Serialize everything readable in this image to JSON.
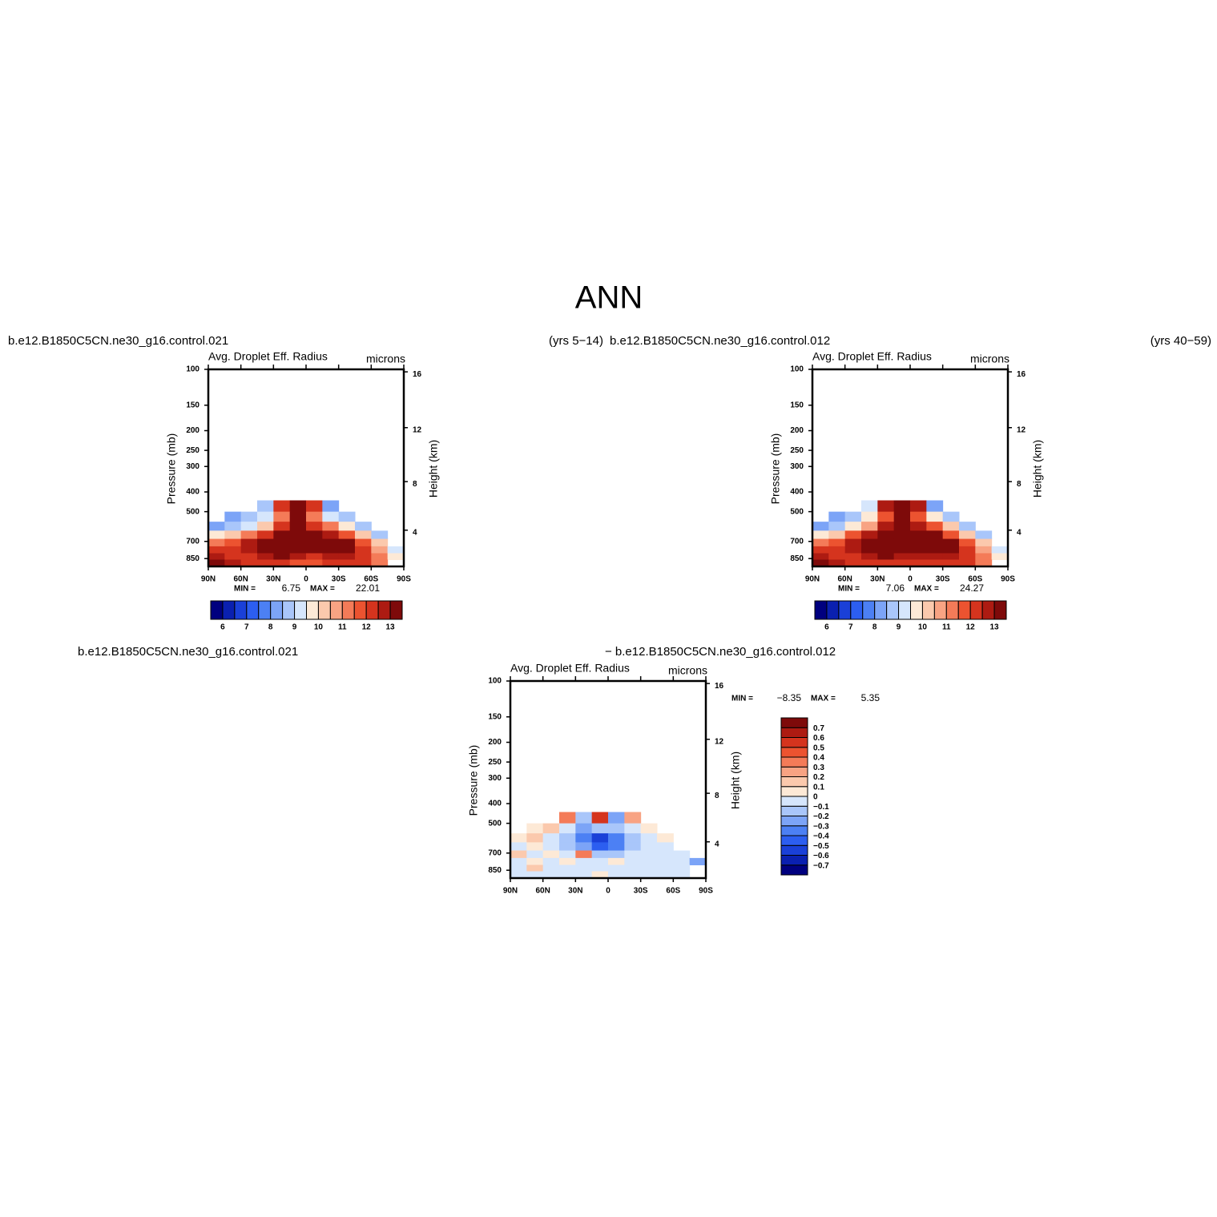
{
  "suptitle": "ANN",
  "header_row1": [
    "b.e12.B1850C5CN.ne30_g16.control.021",
    "(yrs 5−14)",
    "b.e12.B1850C5CN.ne30_g16.control.012",
    "(yrs 40−59)"
  ],
  "header_row2": [
    "b.e12.B1850C5CN.ne30_g16.control.021",
    "− b.e12.B1850C5CN.ne30_g16.control.012"
  ],
  "chart_data": [
    {
      "type": "contour",
      "title": "Avg. Droplet Eff. Radius",
      "units": "microns",
      "ylabel": "Pressure (mb)",
      "y2label": "Height (km)",
      "x": [
        90,
        75,
        60,
        45,
        30,
        15,
        0,
        -15,
        -30,
        -45,
        -60,
        -75,
        -90
      ],
      "y": [
        440,
        500,
        560,
        620,
        680,
        740,
        800,
        860,
        929
      ],
      "values": [
        [
          null,
          null,
          null,
          8.5,
          12,
          14,
          12,
          8,
          null,
          null,
          null,
          null
        ],
        [
          null,
          8,
          8.5,
          9,
          11,
          13,
          11,
          9,
          8.5,
          null,
          null,
          null
        ],
        [
          8,
          8.5,
          9,
          10,
          12,
          13.5,
          12,
          11,
          9.5,
          8.5,
          null,
          null
        ],
        [
          9.5,
          10,
          11,
          12,
          13.5,
          14,
          13.5,
          12.5,
          11.5,
          10,
          8.5,
          null
        ],
        [
          11,
          11.5,
          12.5,
          13.5,
          14,
          14,
          13.5,
          14,
          13,
          11.5,
          10,
          null
        ],
        [
          12,
          12,
          12.5,
          13.5,
          14,
          13.5,
          13,
          13.5,
          13,
          12,
          10.5,
          9
        ],
        [
          12.5,
          12,
          12,
          12.5,
          13,
          12.5,
          12,
          12.5,
          12.5,
          12,
          11,
          9.5
        ],
        [
          13,
          12.5,
          12,
          12,
          12,
          11.5,
          11.5,
          12,
          12,
          12,
          11,
          null
        ]
      ],
      "xlim": [
        90,
        -90
      ],
      "ylim": [
        929,
        100
      ],
      "log_y": true,
      "xticks": [
        {
          "value": 90,
          "label": "90N"
        },
        {
          "value": 60,
          "label": "60N"
        },
        {
          "value": 30,
          "label": "30N"
        },
        0,
        {
          "value": -30,
          "label": "30S"
        },
        {
          "value": -60,
          "label": "60S"
        },
        {
          "value": -90,
          "label": "90S"
        }
      ],
      "yticks": [
        100,
        150,
        200,
        250,
        300,
        400,
        500,
        700,
        850
      ],
      "y2ticks": [
        4,
        8,
        12,
        16
      ],
      "min_text": "MIN =",
      "min": 6.75,
      "max_text": "MAX =",
      "max": 22.01,
      "levels": [
        6,
        6.5,
        7,
        7.5,
        8,
        8.5,
        9,
        9.5,
        10,
        10.5,
        11,
        11.5,
        12,
        12.5,
        13
      ],
      "colorbar_ticks": [
        6,
        7,
        8,
        9,
        10,
        11,
        12,
        13
      ],
      "colorbar": "horizontal",
      "colors": [
        "#00007f",
        "#0a20b0",
        "#1a40d8",
        "#2c5ef0",
        "#4c80f4",
        "#7ca4f7",
        "#a9c6fa",
        "#d6e6fc",
        "#fde9d6",
        "#fbc9ad",
        "#f8a383",
        "#f47b58",
        "#ec5330",
        "#d5341e",
        "#ad1b12",
        "#7e0a0a"
      ]
    },
    {
      "type": "contour",
      "title": "Avg. Droplet Eff. Radius",
      "units": "microns",
      "ylabel": "Pressure (mb)",
      "y2label": "Height (km)",
      "x": [
        90,
        75,
        60,
        45,
        30,
        15,
        0,
        -15,
        -30,
        -45,
        -60,
        -75,
        -90
      ],
      "y": [
        440,
        500,
        560,
        620,
        680,
        740,
        800,
        860,
        929
      ],
      "values": [
        [
          null,
          null,
          null,
          9,
          12.5,
          14,
          12.5,
          8,
          null,
          null,
          null,
          null
        ],
        [
          null,
          8,
          8.5,
          9.5,
          11.5,
          13.5,
          11.5,
          9.5,
          8.5,
          null,
          null,
          null
        ],
        [
          8,
          8.5,
          9.5,
          10.5,
          12.5,
          14,
          12.5,
          11.5,
          10,
          8.5,
          null,
          null
        ],
        [
          9.5,
          10,
          11.5,
          12.5,
          13.5,
          14,
          14,
          13,
          11.5,
          10,
          8.5,
          null
        ],
        [
          11,
          11.5,
          12.5,
          13.5,
          14,
          14,
          14,
          14,
          13,
          11.5,
          10,
          null
        ],
        [
          12,
          12,
          12.5,
          13.5,
          14,
          13.5,
          13.5,
          13.5,
          13,
          12,
          10.5,
          9
        ],
        [
          12.5,
          12,
          12,
          12.5,
          13,
          12.5,
          12.5,
          12.5,
          12.5,
          12,
          11,
          9.5
        ],
        [
          13,
          12.5,
          12,
          12,
          12,
          12,
          12,
          12,
          12,
          12,
          11,
          null
        ]
      ],
      "xlim": [
        90,
        -90
      ],
      "ylim": [
        929,
        100
      ],
      "log_y": true,
      "xticks": [
        {
          "value": 90,
          "label": "90N"
        },
        {
          "value": 60,
          "label": "60N"
        },
        {
          "value": 30,
          "label": "30N"
        },
        0,
        {
          "value": -30,
          "label": "30S"
        },
        {
          "value": -60,
          "label": "60S"
        },
        {
          "value": -90,
          "label": "90S"
        }
      ],
      "yticks": [
        100,
        150,
        200,
        250,
        300,
        400,
        500,
        700,
        850
      ],
      "y2ticks": [
        4,
        8,
        12,
        16
      ],
      "min_text": "MIN =",
      "min": 7.06,
      "max_text": "MAX =",
      "max": 24.27,
      "levels": [
        6,
        6.5,
        7,
        7.5,
        8,
        8.5,
        9,
        9.5,
        10,
        10.5,
        11,
        11.5,
        12,
        12.5,
        13
      ],
      "colorbar_ticks": [
        6,
        7,
        8,
        9,
        10,
        11,
        12,
        13
      ],
      "colorbar": "horizontal",
      "colors": [
        "#00007f",
        "#0a20b0",
        "#1a40d8",
        "#2c5ef0",
        "#4c80f4",
        "#7ca4f7",
        "#a9c6fa",
        "#d6e6fc",
        "#fde9d6",
        "#fbc9ad",
        "#f8a383",
        "#f47b58",
        "#ec5330",
        "#d5341e",
        "#ad1b12",
        "#7e0a0a"
      ]
    },
    {
      "type": "contour",
      "title": "Avg. Droplet Eff. Radius",
      "units": "microns",
      "ylabel": "Pressure (mb)",
      "y2label": "Height (km)",
      "x": [
        90,
        75,
        60,
        45,
        30,
        15,
        0,
        -15,
        -30,
        -45,
        -60,
        -75,
        -90
      ],
      "y": [
        440,
        500,
        560,
        620,
        680,
        740,
        800,
        860,
        929
      ],
      "values": [
        [
          null,
          null,
          null,
          0.3,
          -0.2,
          0.5,
          -0.3,
          0.2,
          null,
          null,
          null,
          null
        ],
        [
          null,
          0.05,
          0.1,
          -0.1,
          -0.3,
          -0.2,
          -0.2,
          -0.1,
          0.05,
          null,
          null,
          null
        ],
        [
          0.05,
          0.1,
          -0.1,
          -0.2,
          -0.4,
          -0.6,
          -0.4,
          -0.2,
          -0.1,
          0.05,
          null,
          null
        ],
        [
          -0.05,
          0.05,
          -0.1,
          -0.2,
          -0.3,
          -0.5,
          -0.4,
          -0.2,
          -0.1,
          -0.05,
          null,
          null
        ],
        [
          0.1,
          -0.05,
          0.05,
          -0.1,
          0.3,
          -0.2,
          -0.2,
          -0.1,
          -0.05,
          -0.05,
          -0.05,
          null
        ],
        [
          -0.1,
          0.05,
          -0.05,
          0.05,
          -0.05,
          -0.1,
          0.05,
          -0.05,
          -0.05,
          -0.05,
          -0.05,
          -0.3
        ],
        [
          -0.05,
          0.1,
          -0.05,
          -0.05,
          -0.05,
          -0.05,
          -0.05,
          -0.05,
          -0.05,
          -0.05,
          -0.05,
          null
        ],
        [
          -0.05,
          -0.1,
          -0.05,
          -0.05,
          -0.05,
          0.05,
          -0.05,
          -0.05,
          -0.05,
          -0.05,
          -0.1,
          null
        ]
      ],
      "xlim": [
        90,
        -90
      ],
      "ylim": [
        929,
        100
      ],
      "log_y": true,
      "xticks": [
        {
          "value": 90,
          "label": "90N"
        },
        {
          "value": 60,
          "label": "60N"
        },
        {
          "value": 30,
          "label": "30N"
        },
        0,
        {
          "value": -30,
          "label": "30S"
        },
        {
          "value": -60,
          "label": "60S"
        },
        {
          "value": -90,
          "label": "90S"
        }
      ],
      "yticks": [
        100,
        150,
        200,
        250,
        300,
        400,
        500,
        700,
        850
      ],
      "y2ticks": [
        4,
        8,
        12,
        16
      ],
      "min_text": "MIN =",
      "min": -8.35,
      "min_label": "−8.35",
      "max_text": "MAX =",
      "max": 5.35,
      "levels": [
        {
          "value": -0.7,
          "label": "−0.7"
        },
        {
          "value": -0.6,
          "label": "−0.6"
        },
        {
          "value": -0.5,
          "label": "−0.5"
        },
        {
          "value": -0.4,
          "label": "−0.4"
        },
        {
          "value": -0.3,
          "label": "−0.3"
        },
        {
          "value": -0.2,
          "label": "−0.2"
        },
        {
          "value": -0.1,
          "label": "−0.1"
        },
        0,
        0.1,
        0.2,
        0.3,
        0.4,
        0.5,
        0.6,
        0.7
      ],
      "colorbar": "vertical",
      "colors": [
        "#00007f",
        "#0a20b0",
        "#1a40d8",
        "#2c5ef0",
        "#4c80f4",
        "#7ca4f7",
        "#a9c6fa",
        "#d6e6fc",
        "#fde9d6",
        "#fbc9ad",
        "#f8a383",
        "#f47b58",
        "#ec5330",
        "#d5341e",
        "#ad1b12",
        "#7e0a0a"
      ]
    }
  ]
}
